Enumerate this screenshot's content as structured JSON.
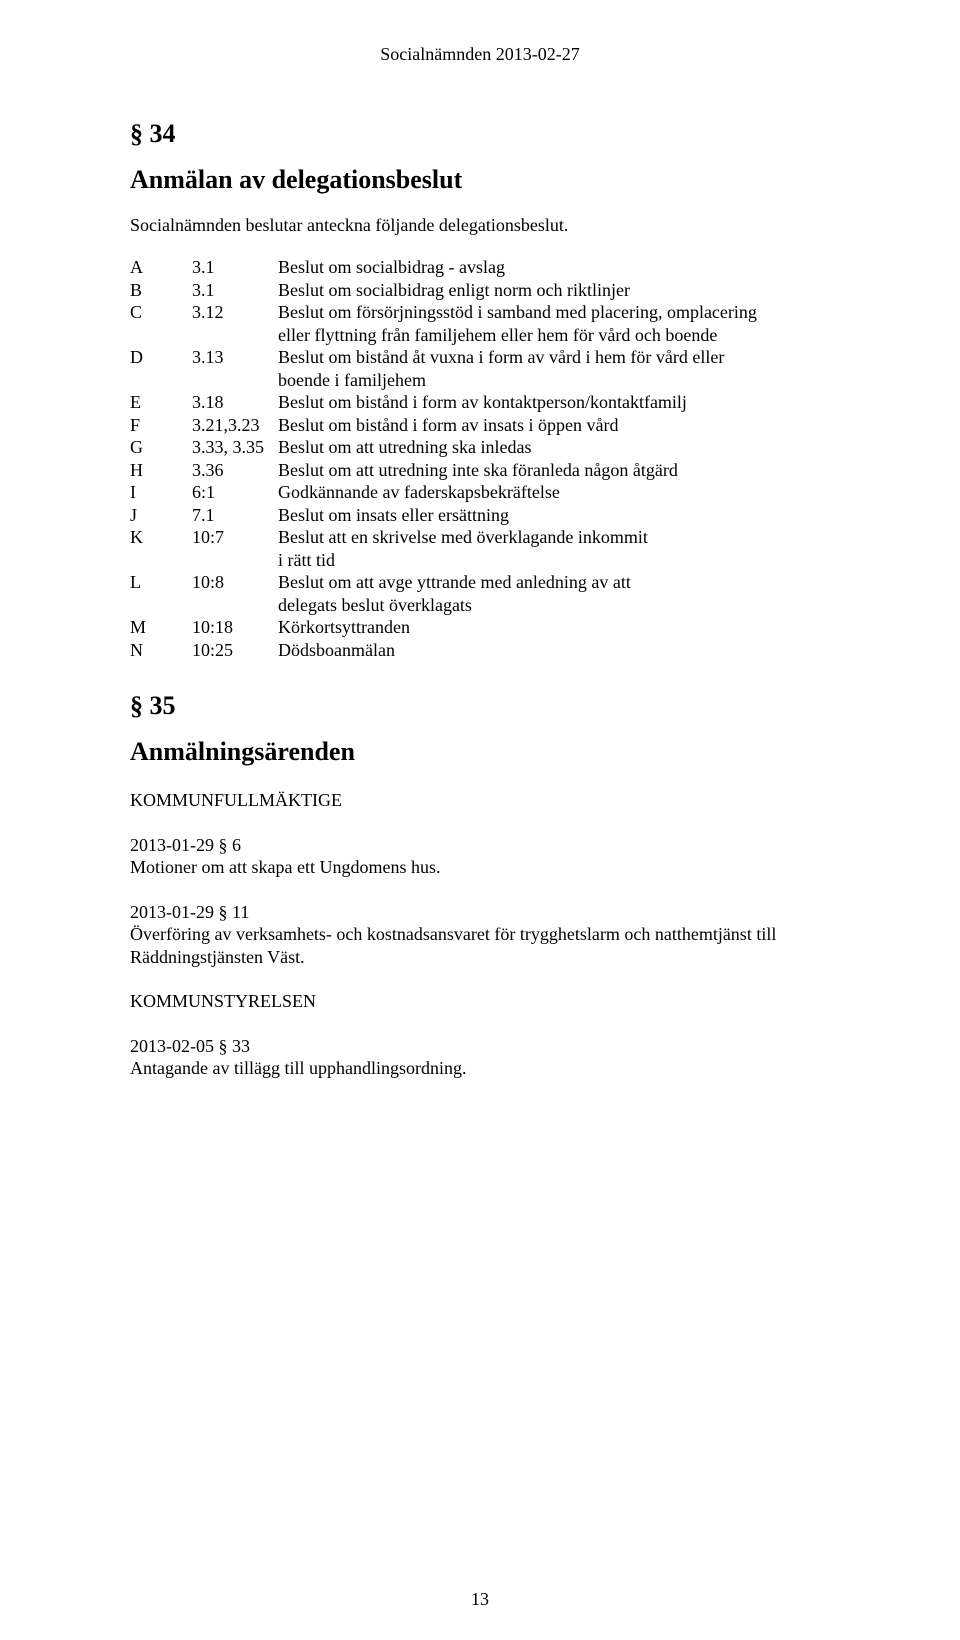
{
  "header": "Socialnämnden 2013-02-27",
  "section34": {
    "number": "§ 34",
    "title": "Anmälan av delegationsbeslut",
    "intro": "Socialnämnden beslutar anteckna följande delegationsbeslut.",
    "rows": [
      {
        "letter": "A",
        "code": "3.1",
        "lines": [
          "Beslut om socialbidrag - avslag"
        ]
      },
      {
        "letter": "B",
        "code": "3.1",
        "lines": [
          "Beslut om socialbidrag enligt norm och riktlinjer"
        ]
      },
      {
        "letter": "C",
        "code": "3.12",
        "lines": [
          "Beslut om försörjningsstöd   i samband med placering, omplacering",
          "eller flyttning från familjehem eller hem för vård och boende"
        ]
      },
      {
        "letter": "D",
        "code": "3.13",
        "lines": [
          "Beslut om bistånd åt vuxna i form av vård i hem för vård eller",
          "boende i familjehem"
        ]
      },
      {
        "letter": "E",
        "code": "3.18",
        "lines": [
          "Beslut om bistånd i form av kontaktperson/kontaktfamilj"
        ]
      },
      {
        "letter": "F",
        "code": "3.21,3.23",
        "lines": [
          "Beslut om bistånd i form av insats i öppen vård"
        ]
      },
      {
        "letter": "G",
        "code": "3.33, 3.35",
        "lines": [
          "Beslut om att utredning ska inledas"
        ]
      },
      {
        "letter": "H",
        "code": "3.36",
        "lines": [
          "Beslut om att utredning inte ska föranleda någon åtgärd"
        ]
      },
      {
        "letter": "I",
        "code": "6:1",
        "lines": [
          "Godkännande av faderskapsbekräftelse"
        ]
      },
      {
        "letter": "J",
        "code": "7.1",
        "lines": [
          "Beslut om insats eller ersättning"
        ]
      },
      {
        "letter": "K",
        "code": "10:7",
        "lines": [
          "Beslut att en skrivelse med överklagande inkommit",
          "i rätt tid"
        ]
      },
      {
        "letter": "L",
        "code": "10:8",
        "lines": [
          "Beslut om att avge yttrande med anledning av att",
          "delegats beslut överklagats"
        ]
      },
      {
        "letter": "M",
        "code": "10:18",
        "lines": [
          "Körkortsyttranden"
        ]
      },
      {
        "letter": "N",
        "code": "10:25",
        "lines": [
          "Dödsboanmälan"
        ]
      }
    ]
  },
  "section35": {
    "number": "§ 35",
    "title": "Anmälningsärenden",
    "blocks": [
      {
        "head": "KOMMUNFULLMÄKTIGE",
        "paras": []
      },
      {
        "head": "2013-01-29  § 6",
        "paras": [
          "Motioner om att skapa ett Ungdomens hus."
        ]
      },
      {
        "head": "2013-01-29  § 11",
        "paras": [
          "Överföring av verksamhets- och kostnadsansvaret för trygghetslarm och natthemtjänst till",
          "Räddningstjänsten Väst."
        ]
      },
      {
        "head": "KOMMUNSTYRELSEN",
        "paras": []
      },
      {
        "head": "2013-02-05  § 33",
        "paras": [
          "Antagande av tillägg till upphandlingsordning."
        ]
      }
    ]
  },
  "pageNumber": "13"
}
